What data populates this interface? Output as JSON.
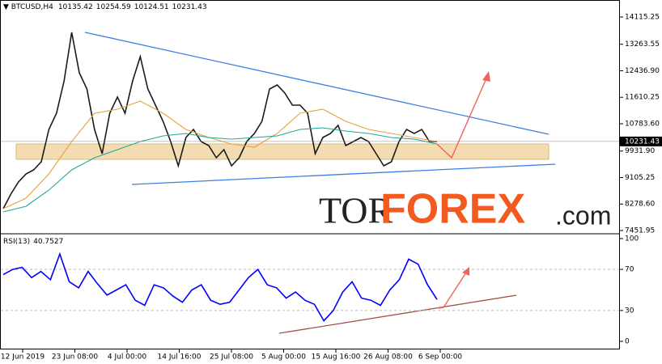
{
  "chart_data": [
    {
      "type": "line",
      "symbol": "BTCUSD,H4",
      "ohlc": [
        10135.42,
        10254.59,
        10124.51,
        10231.43
      ],
      "last_price": 10231.43,
      "series": [
        {
          "color": "#1a1a1a",
          "values": [
            8133,
            8587,
            8966,
            9219,
            9345,
            9597,
            10607,
            11111,
            12121,
            13635,
            12373,
            11869,
            10607,
            9849,
            11111,
            11616,
            11111,
            12121,
            12878,
            11869,
            11364,
            10859,
            10228,
            9471,
            10354,
            10607,
            10228,
            10102,
            9723,
            9976,
            9471,
            9723,
            10228,
            10480,
            10859,
            11869,
            11995,
            11742,
            11364,
            11364,
            11111,
            9849,
            10354,
            10480,
            10733,
            10102,
            10228,
            10354,
            10228,
            9849,
            9471,
            9597,
            10228,
            10607,
            10480,
            10607,
            10228,
            10231.43
          ]
        },
        {
          "color": "#e8a33c",
          "values": [
            8133,
            8461,
            9219,
            10228,
            11111,
            11238,
            11490,
            11111,
            10607,
            10354,
            10152,
            10051,
            10480,
            11111,
            11238,
            10859,
            10607,
            10480,
            10354,
            10228
          ]
        },
        {
          "color": "#20a89a",
          "values": [
            8032,
            8209,
            8714,
            9345,
            9723,
            9976,
            10228,
            10405,
            10480,
            10354,
            10304,
            10354,
            10405,
            10607,
            10657,
            10556,
            10480,
            10354,
            10304,
            10152
          ]
        }
      ],
      "ylim": [
        7376,
        14645
      ],
      "yticks": [
        14115.25,
        13263.55,
        {
          "value": 12436.9,
          "label": "12436.90"
        },
        11610.25,
        {
          "value": 10783.6,
          "label": "10783.60"
        },
        {
          "value": 9931.9,
          "label": "9931.90"
        },
        9105.25,
        {
          "value": 8278.6,
          "label": "8278.60"
        },
        7451.95
      ]
    },
    {
      "type": "line",
      "indicator": "RSI(13)",
      "indicator_value": 40.7527,
      "series": [
        {
          "color": "#0000ff",
          "values": [
            65,
            70,
            72,
            62,
            68,
            60,
            85,
            58,
            52,
            68,
            56,
            45,
            50,
            55,
            40,
            35,
            55,
            52,
            44,
            38,
            50,
            55,
            40,
            36,
            38,
            50,
            62,
            70,
            55,
            52,
            42,
            48,
            40,
            36,
            20,
            30,
            48,
            58,
            42,
            40,
            35,
            50,
            60,
            80,
            75,
            55,
            40.7527
          ]
        }
      ],
      "ylim": [
        -7.9,
        103.9
      ],
      "yticks": [
        100,
        70,
        30,
        0
      ],
      "xticks": [
        "12 Jun 2019",
        "23 Jun 08:00",
        "4 Jul 00:00",
        "14 Jul 16:00",
        "25 Jul 08:00",
        "5 Aug 00:00",
        "15 Aug 16:00",
        "26 Aug 08:00",
        "6 Sep 00:00"
      ]
    }
  ],
  "watermark": {
    "parts": [
      "TOR",
      "FOREX",
      ".com"
    ]
  }
}
